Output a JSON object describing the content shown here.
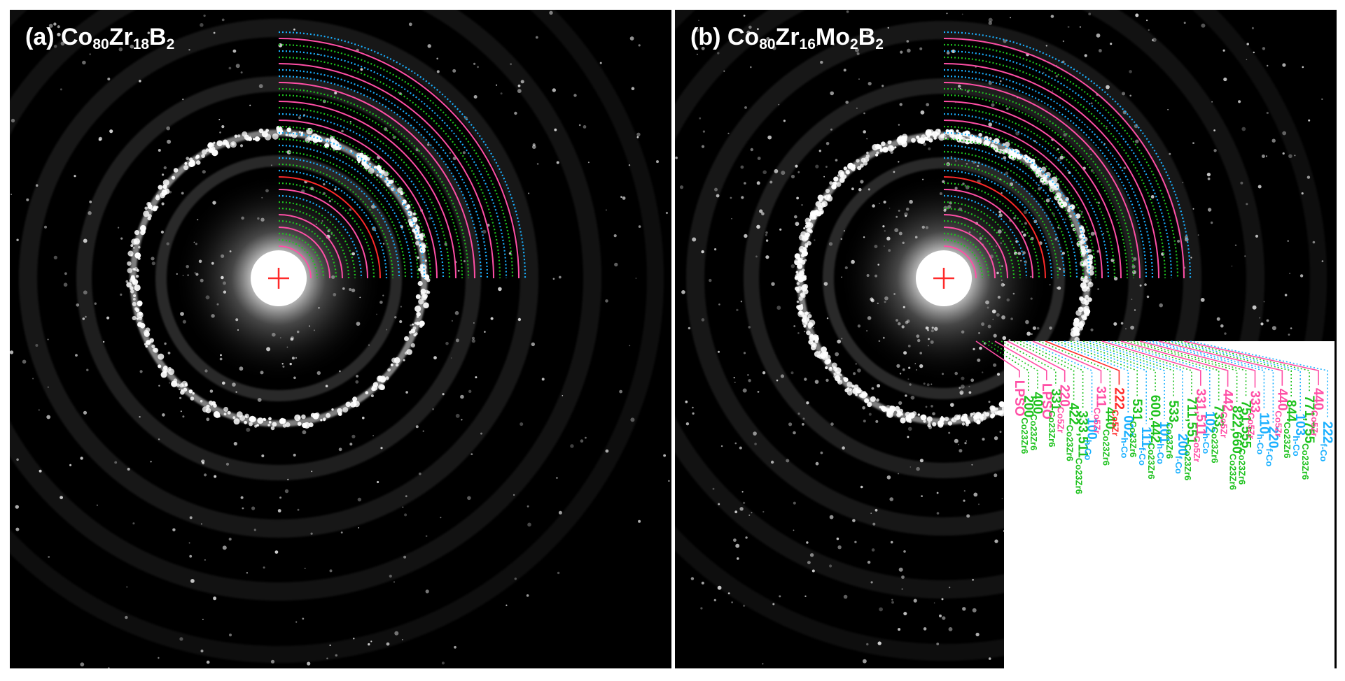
{
  "panels": [
    {
      "id": "a",
      "prefix": "(a) ",
      "formula": [
        [
          "Co",
          "80"
        ],
        [
          "Zr",
          "18"
        ],
        [
          "B",
          "2"
        ]
      ]
    },
    {
      "id": "b",
      "prefix": "(b) ",
      "formula": [
        [
          "Co",
          "80"
        ],
        [
          "Zr",
          "16"
        ],
        [
          "Mo",
          "2"
        ],
        [
          "B",
          "2"
        ]
      ]
    }
  ],
  "colors": {
    "co5zr": "#ff4fa6",
    "co23zr6": "#1ec21e",
    "hco": "#1ab0ff",
    "fcc": "#ff2a2a",
    "center_mark": "#ff2a2a"
  },
  "reflections": [
    {
      "phase": "co5zr",
      "style": "solid",
      "main": "LPSO",
      "sub": ""
    },
    {
      "phase": "co23zr6",
      "style": "dotted",
      "main": "200",
      "sub": "Co23Zr6"
    },
    {
      "phase": "co23zr6",
      "style": "dotted",
      "main": "400",
      "sub": "Co23Zr6"
    },
    {
      "phase": "co5zr",
      "style": "solid",
      "main": "LPSO",
      "sub": ""
    },
    {
      "phase": "co23zr6",
      "style": "dotted",
      "main": "331",
      "sub": "Co23Zr6"
    },
    {
      "phase": "co5zr",
      "style": "solid",
      "main": "220",
      "sub": "Co5Zr"
    },
    {
      "phase": "co23zr6",
      "style": "dotted",
      "main": "422",
      "sub": "Co23Zr6"
    },
    {
      "phase": "co23zr6",
      "style": "dotted",
      "main": "333,511",
      "sub": "Co23Zr6"
    },
    {
      "phase": "hco",
      "style": "dotted",
      "main": "100",
      "sub": "h-Co"
    },
    {
      "phase": "co5zr",
      "style": "solid",
      "main": "311",
      "sub": "Co5Zr"
    },
    {
      "phase": "co23zr6",
      "style": "dotted",
      "main": "440",
      "sub": "Co23Zr6"
    },
    {
      "phase": "fcc",
      "style": "solid",
      "main": "222",
      "sub": "Co5Zr"
    },
    {
      "phase": "hco",
      "style": "dotted",
      "main": "002",
      "sub": "h-Co"
    },
    {
      "phase": "co23zr6",
      "style": "dotted",
      "main": "531",
      "sub": "Co23Zr6"
    },
    {
      "phase": "hco",
      "style": "dotted",
      "main": "111",
      "sub": "f-Co"
    },
    {
      "phase": "co23zr6",
      "style": "dotted",
      "main": "600,442",
      "sub": "Co23Zr6"
    },
    {
      "phase": "hco",
      "style": "dotted",
      "main": "101",
      "sub": "h-Co"
    },
    {
      "phase": "co23zr6",
      "style": "dotted",
      "main": "533",
      "sub": "Co23Zr6"
    },
    {
      "phase": "hco",
      "style": "dotted",
      "main": "200",
      "sub": "f-Co"
    },
    {
      "phase": "co23zr6",
      "style": "dotted",
      "main": "711,551",
      "sub": "Co23Zr6"
    },
    {
      "phase": "co5zr",
      "style": "solid",
      "main": "331,511",
      "sub": "Co5Zr"
    },
    {
      "phase": "hco",
      "style": "dotted",
      "main": "102",
      "sub": "h-Co"
    },
    {
      "phase": "co23zr6",
      "style": "dotted",
      "main": "733",
      "sub": "Co23Zr6"
    },
    {
      "phase": "co5zr",
      "style": "solid",
      "main": "442",
      "sub": "Co5Zr"
    },
    {
      "phase": "co23zr6",
      "style": "dotted",
      "main": "822,660",
      "sub": "Co23Zr6"
    },
    {
      "phase": "co23zr6",
      "style": "dotted",
      "main": "751,555",
      "sub": "Co23Zr6"
    },
    {
      "phase": "co5zr",
      "style": "solid",
      "main": "333",
      "sub": "Co5Zr"
    },
    {
      "phase": "hco",
      "style": "dotted",
      "main": "110",
      "sub": "h-Co"
    },
    {
      "phase": "hco",
      "style": "dotted",
      "main": "220",
      "sub": "f-Co"
    },
    {
      "phase": "co5zr",
      "style": "solid",
      "main": "440",
      "sub": "Co5Zr"
    },
    {
      "phase": "co23zr6",
      "style": "dotted",
      "main": "844",
      "sub": "Co23Zr6"
    },
    {
      "phase": "hco",
      "style": "dotted",
      "main": "103",
      "sub": "h-Co"
    },
    {
      "phase": "co23zr6",
      "style": "dotted",
      "main": "771,755",
      "sub": "Co23Zr6"
    },
    {
      "phase": "co5zr",
      "style": "solid",
      "main": "440",
      "sub": "Co5Zr"
    },
    {
      "phase": "hco",
      "style": "dotted",
      "main": "222",
      "sub": "f-Co"
    }
  ]
}
